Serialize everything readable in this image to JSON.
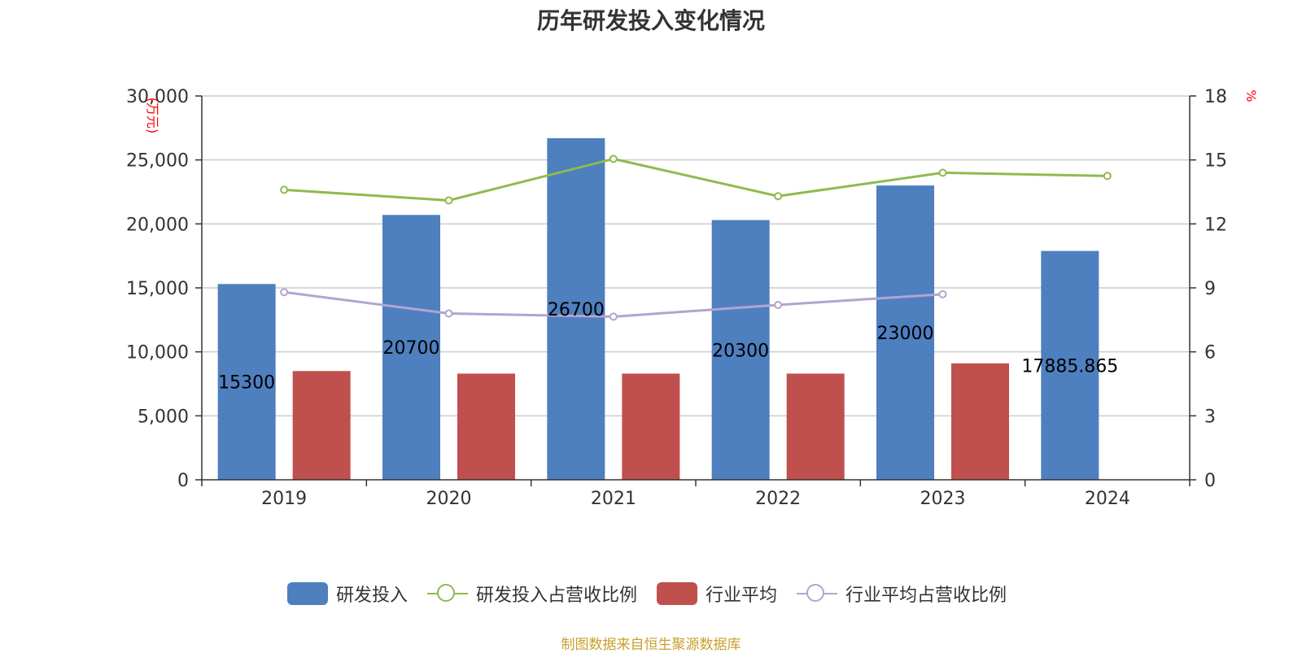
{
  "chart_data": {
    "type": "bar",
    "title": "历年研发投入变化情况",
    "categories": [
      "2019",
      "2020",
      "2021",
      "2022",
      "2023",
      "2024"
    ],
    "y_left": {
      "unit_label": "万元",
      "ylim": [
        0,
        30000
      ],
      "ticks": [
        "0",
        "5,000",
        "10,000",
        "15,000",
        "20,000",
        "25,000",
        "30,000"
      ]
    },
    "y_right": {
      "unit_label": "%",
      "ylim": [
        0,
        18
      ],
      "ticks": [
        "0",
        "3",
        "6",
        "9",
        "12",
        "15",
        "18"
      ]
    },
    "series": [
      {
        "name": "研发投入",
        "kind": "bar",
        "axis": "left",
        "color": "#4e7fbf",
        "values": [
          15300,
          20700,
          26700,
          20300,
          23000,
          17885.865
        ],
        "labels": [
          "15300",
          "20700",
          "26700",
          "20300",
          "23000",
          "17885.865"
        ]
      },
      {
        "name": "研发投入占营收比例",
        "kind": "line",
        "axis": "right",
        "color": "#8fba4f",
        "values": [
          13.6,
          13.1,
          15.05,
          13.3,
          14.4,
          14.25
        ]
      },
      {
        "name": "行业平均",
        "kind": "bar",
        "axis": "left",
        "color": "#c0504d",
        "values": [
          8500,
          8300,
          8300,
          8300,
          9100,
          null
        ]
      },
      {
        "name": "行业平均占营收比例",
        "kind": "line",
        "axis": "right",
        "color": "#b3a4cf",
        "values": [
          8.8,
          7.8,
          7.65,
          8.2,
          8.7,
          null
        ]
      }
    ],
    "grid": true,
    "legend_position": "bottom"
  },
  "footer": {
    "source": "制图数据来自恒生聚源数据库"
  }
}
